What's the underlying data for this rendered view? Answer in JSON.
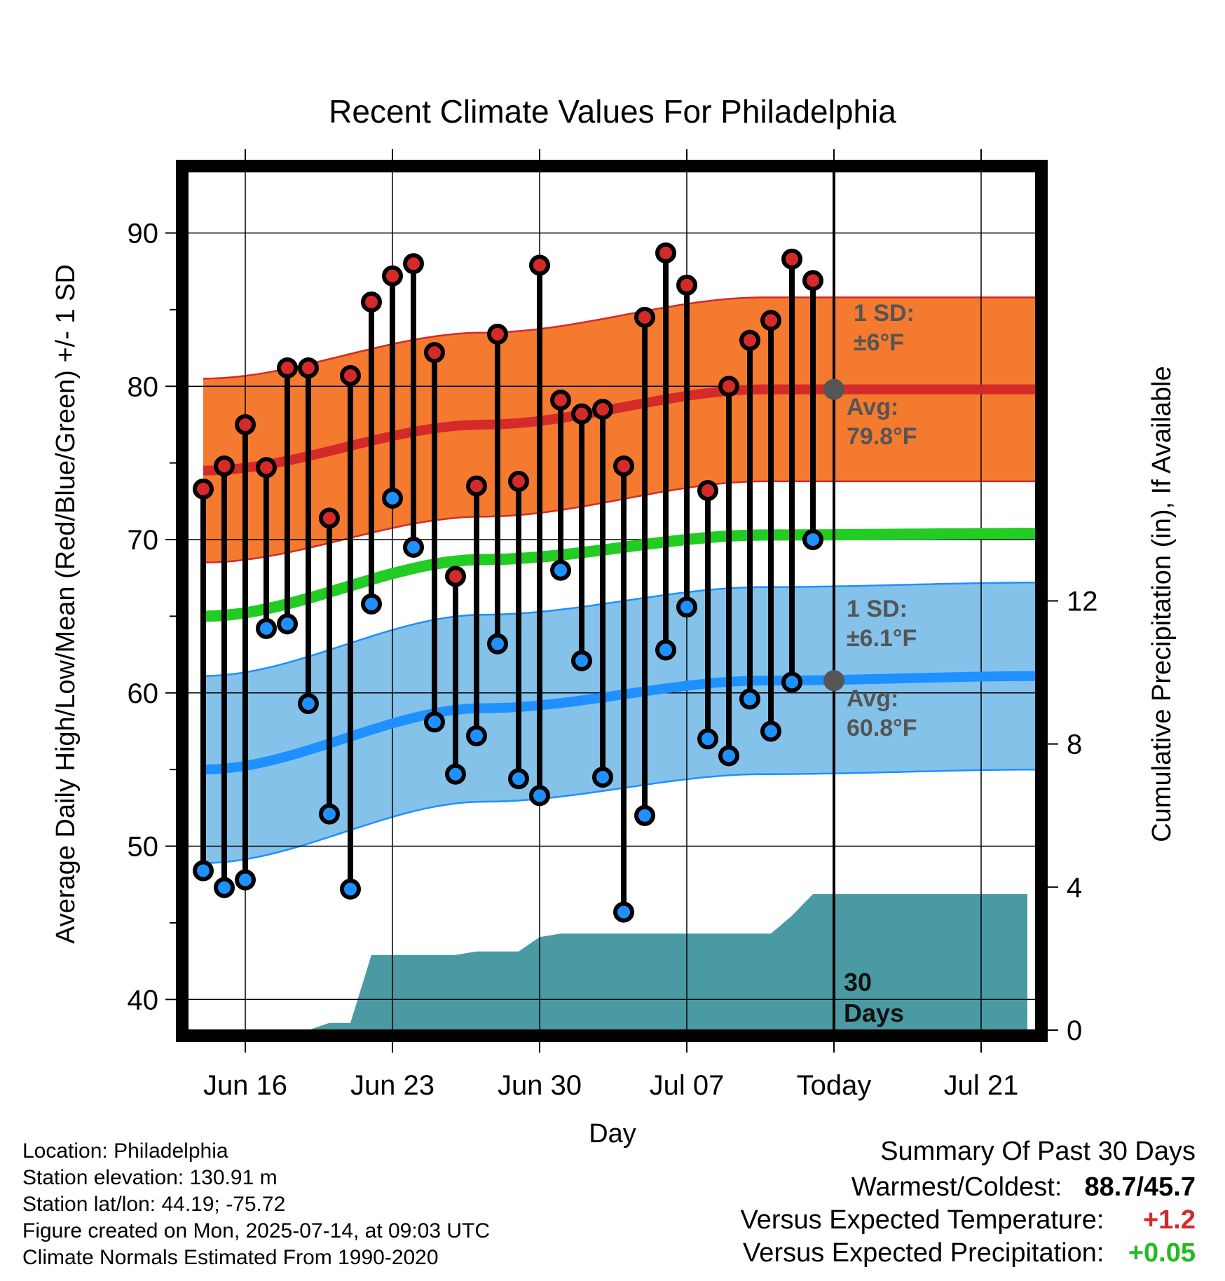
{
  "chart_data": {
    "type": "line",
    "title": "Recent Climate Values For Philadelphia",
    "xlabel": "Day",
    "ylabel": "Average Daily High/Low/Mean (Red/Blue/Green) +/- 1 SD",
    "y2label": "Cumulative Precipitation (in), If Available",
    "ylim": [
      38,
      94
    ],
    "y2lim": [
      0,
      24
    ],
    "x_tick_labels": [
      "Jun 16",
      "Jun 23",
      "Jun 30",
      "Jul 07",
      "Today",
      "Jul 21"
    ],
    "y_ticks": [
      40,
      50,
      60,
      70,
      80,
      90
    ],
    "y2_ticks": [
      0,
      4,
      8,
      12
    ],
    "grid": true,
    "days": [
      "Jun 14",
      "Jun 15",
      "Jun 16",
      "Jun 17",
      "Jun 18",
      "Jun 19",
      "Jun 20",
      "Jun 21",
      "Jun 22",
      "Jun 23",
      "Jun 24",
      "Jun 25",
      "Jun 26",
      "Jun 27",
      "Jun 28",
      "Jun 29",
      "Jun 30",
      "Jul 01",
      "Jul 02",
      "Jul 03",
      "Jul 04",
      "Jul 05",
      "Jul 06",
      "Jul 07",
      "Jul 08",
      "Jul 09",
      "Jul 10",
      "Jul 11",
      "Jul 12",
      "Jul 13"
    ],
    "highs": [
      73.3,
      74.8,
      77.5,
      74.7,
      81.2,
      81.2,
      71.4,
      80.7,
      85.5,
      87.2,
      88.0,
      82.2,
      67.6,
      73.5,
      83.4,
      73.8,
      87.9,
      79.1,
      78.2,
      78.5,
      74.8,
      84.5,
      88.7,
      86.6,
      73.2,
      80.0,
      83.0,
      84.3,
      88.3,
      86.9
    ],
    "lows": [
      48.4,
      47.3,
      47.8,
      64.2,
      64.5,
      59.3,
      52.1,
      47.2,
      65.8,
      72.7,
      69.5,
      58.1,
      54.7,
      57.2,
      63.2,
      54.4,
      53.3,
      68.0,
      62.1,
      54.5,
      45.7,
      52.0,
      62.8,
      65.6,
      57.0,
      55.9,
      59.6,
      57.5,
      60.7,
      70.0
    ],
    "normal_day_range": [
      "Jun 14",
      "Jul 24"
    ],
    "normal_high_avg": [
      74.5,
      77.5,
      79.8,
      79.8
    ],
    "normal_high_sd": 6,
    "normal_low_avg": [
      55.0,
      59.0,
      60.8,
      61.1
    ],
    "normal_low_sd": 6.1,
    "normal_mean": [
      65.0,
      68.7,
      70.3,
      70.4
    ],
    "precip_cumulative": [
      0,
      0,
      0,
      0,
      0,
      0,
      0.2,
      0.2,
      2.1,
      2.1,
      2.1,
      2.1,
      2.1,
      2.2,
      2.2,
      2.2,
      2.6,
      2.7,
      2.7,
      2.7,
      2.7,
      2.7,
      2.7,
      2.7,
      2.7,
      2.7,
      2.7,
      2.7,
      3.2,
      3.8,
      3.8
    ],
    "series": [
      {
        "name": "High",
        "color": "#d42a2a"
      },
      {
        "name": "Low",
        "color": "#1e90ff"
      },
      {
        "name": "Mean",
        "color": "#22cc22"
      }
    ],
    "annotations": {
      "high_sd_line1": "1 SD:",
      "high_sd_line2": "±6°F",
      "high_avg_line1": "Avg:",
      "high_avg_line2": "79.8°F",
      "low_sd_line1": "1 SD:",
      "low_sd_line2": "±6.1°F",
      "low_avg_line1": "Avg:",
      "low_avg_line2": "60.8°F",
      "days_line1": "30",
      "days_line2": "Days"
    }
  },
  "colors": {
    "high_band": "#f47a30",
    "high_line": "#d42a2a",
    "low_band": "#85c2ea",
    "low_line": "#1e90ff",
    "mean_line": "#22cc22",
    "precip_fill": "#4a9aa3",
    "marker_high": "#d42a2a",
    "marker_low": "#1e90ff",
    "positive_temp": "#d42a2a",
    "positive_precip": "#22bb22"
  },
  "info": {
    "location": "Location: Philadelphia",
    "elevation": "Station elevation: 130.91 m",
    "latlon": "Station lat/lon: 44.19; -75.72",
    "created": "Figure created on Mon, 2025-07-14, at 09:03 UTC",
    "normals": "Climate Normals Estimated From 1990-2020"
  },
  "summary": {
    "heading": "Summary Of Past 30 Days",
    "warm_cold_label": "Warmest/Coldest:",
    "warm_cold_value": "88.7/45.7",
    "temp_label": "Versus Expected Temperature:",
    "temp_value": "+1.2",
    "precip_label": "Versus Expected Precipitation:",
    "precip_value": "+0.05"
  }
}
